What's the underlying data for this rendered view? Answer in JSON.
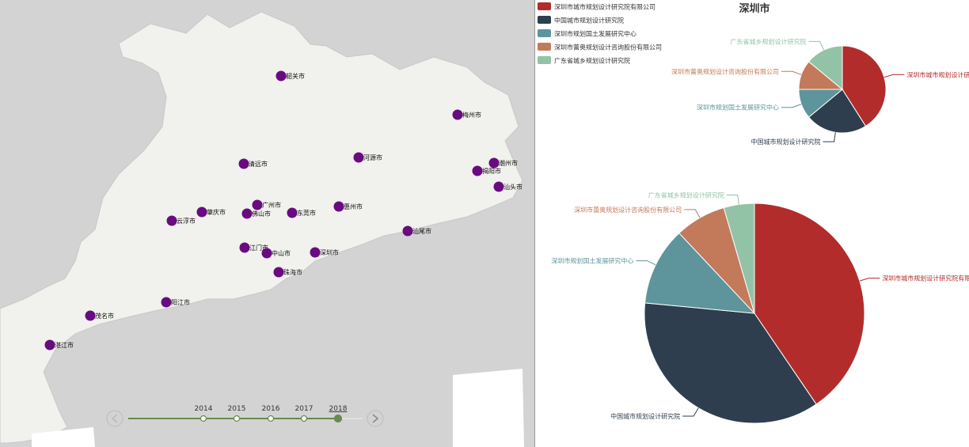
{
  "title": "深圳市",
  "legend": [
    {
      "name": "深圳市城市规划设计研究院有限公司",
      "color": "#b22c2c"
    },
    {
      "name": "中国城市规划设计研究院",
      "color": "#2e3e4e"
    },
    {
      "name": "深圳市规划国土发展研究中心",
      "color": "#5e949c"
    },
    {
      "name": "深圳市蕾奥规划设计咨询股份有限公司",
      "color": "#c27a5a"
    },
    {
      "name": "广东省城乡规划设计研究院",
      "color": "#92c3a6"
    }
  ],
  "chart_data": [
    {
      "type": "pie",
      "title": "深圳市",
      "categories": [
        "深圳市城市规划设计研究院有限公司",
        "中国城市规划设计研究院",
        "深圳市规划国土发展研究中心",
        "深圳市蕾奥规划设计咨询股份有限公司",
        "广东省城乡规划设计研究院"
      ],
      "values": [
        41,
        23,
        11,
        11,
        14
      ],
      "labels": [
        "深圳市城市规划设计研究",
        "中国城市规划设计研究院",
        "深圳市规划国土发展研究中心",
        "深圳市蕾奥规划设计咨询股份有限公司",
        "广东省城乡规划设计研究院"
      ]
    },
    {
      "type": "pie",
      "categories": [
        "深圳市城市规划设计研究院有限公司",
        "中国城市规划设计研究院",
        "深圳市规划国土发展研究中心",
        "深圳市蕾奥规划设计咨询股份有限公司",
        "广东省城乡规划设计研究院"
      ],
      "values": [
        40.5,
        36,
        11.5,
        7.5,
        4.5
      ],
      "labels": [
        "深圳市城市规划设计研究院有限",
        "中国城市规划设计研究院",
        "深圳市规划国土发展研究中心",
        "深圳市蕾奥规划设计咨询股份有限公司",
        "广东省城乡规划设计研究院"
      ]
    }
  ],
  "cities": [
    "韶关市",
    "梅州市",
    "河源市",
    "清远市",
    "潮州市",
    "揭阳市",
    "汕头市",
    "广州市",
    "肇庆市",
    "佛山市",
    "东莞市",
    "惠州市",
    "云浮市",
    "汕尾市",
    "江门市",
    "中山市",
    "深圳市",
    "珠海市",
    "阳江市",
    "茂名市",
    "湛江市"
  ],
  "timeline": {
    "years": [
      "2014",
      "2015",
      "2016",
      "2017",
      "2018"
    ],
    "current": "2018"
  },
  "colors": {
    "marker": "#6a0a80",
    "timeline": "#6b8a4e",
    "land": "#f2f2ee",
    "sea": "#d3d3d3"
  }
}
